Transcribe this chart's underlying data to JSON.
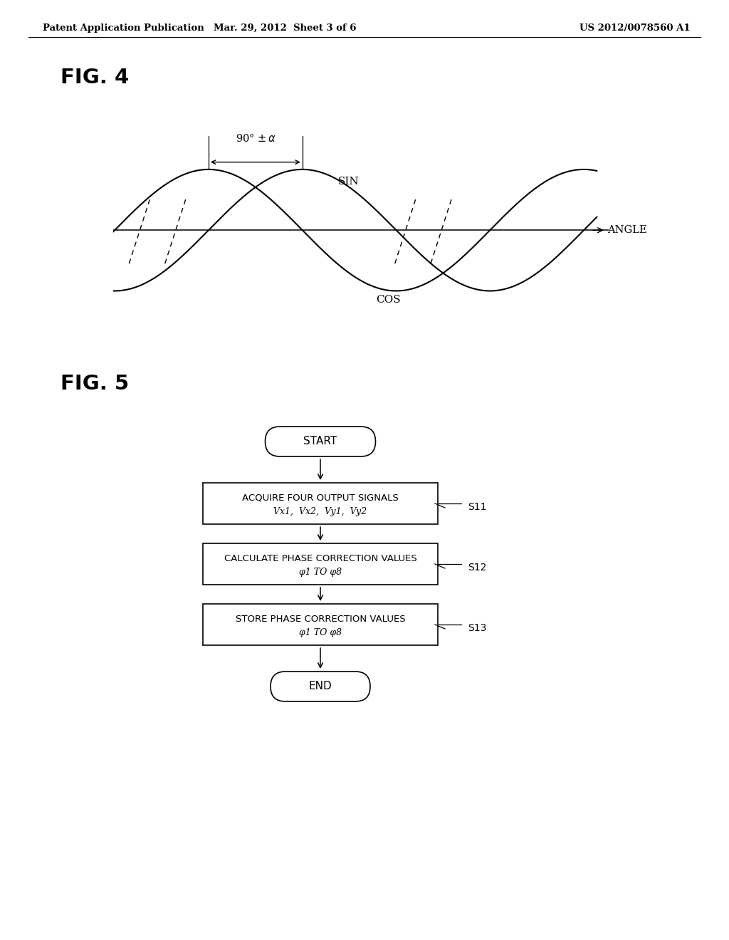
{
  "header_left": "Patent Application Publication",
  "header_center": "Mar. 29, 2012  Sheet 3 of 6",
  "header_right": "US 2012/0078560 A1",
  "fig4_label": "FIG. 4",
  "fig5_label": "FIG. 5",
  "bg_color": "#ffffff",
  "text_color": "#000000",
  "fig4": {
    "annotation_90alpha": "90° ± α",
    "sin_label": "SIN",
    "cos_label": "COS",
    "angle_label": "ANGLE"
  },
  "fig5": {
    "start_label": "START",
    "end_label": "END",
    "box1_line1": "ACQUIRE FOUR OUTPUT SIGNALS",
    "box1_line2": "Vx1,  Vx2,  Vy1,  Vy2",
    "box2_line1": "CALCULATE PHASE CORRECTION VALUES",
    "box2_line2": "φ1 TO φ8",
    "box3_line1": "STORE PHASE CORRECTION VALUES",
    "box3_line2": "φ1 TO φ8",
    "s11_label": "S11",
    "s12_label": "S12",
    "s13_label": "S13"
  }
}
